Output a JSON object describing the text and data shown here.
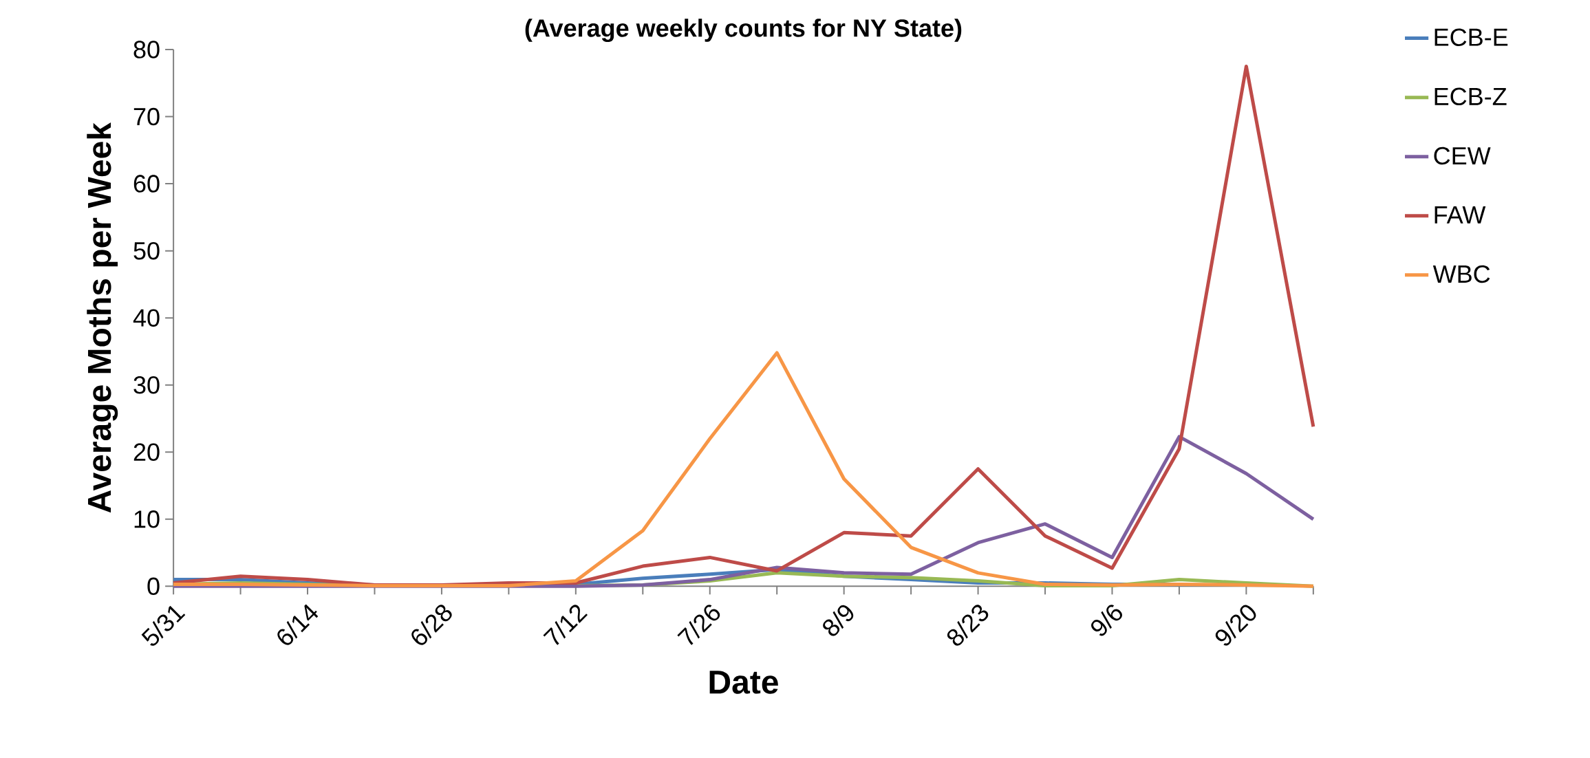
{
  "chart_data": {
    "type": "line",
    "title": "(Average weekly counts for NY State)",
    "xlabel": "Date",
    "ylabel": "Average Moths per Week",
    "categories": [
      "5/31",
      null,
      "6/14",
      null,
      "6/28",
      null,
      "7/12",
      null,
      "7/26",
      null,
      "8/9",
      null,
      "8/23",
      null,
      "9/6",
      null,
      "9/20",
      null
    ],
    "series": [
      {
        "name": "ECB-E",
        "color": "#4a7ebb",
        "values": [
          1.0,
          1.0,
          0.5,
          0.2,
          0.2,
          0.2,
          0.3,
          1.2,
          1.8,
          2.5,
          1.5,
          1.0,
          0.5,
          0.5,
          0.3,
          0.3,
          null,
          null
        ]
      },
      {
        "name": "ECB-Z",
        "color": "#98b954",
        "values": [
          0.3,
          0.5,
          0.3,
          0.1,
          0.1,
          0.1,
          0.1,
          0.2,
          0.8,
          2.0,
          1.5,
          1.3,
          0.8,
          0.1,
          0.1,
          1.0,
          0.5,
          0
        ]
      },
      {
        "name": "CEW",
        "color": "#7d60a0",
        "values": [
          0,
          0,
          0,
          0,
          0,
          0,
          0,
          0.2,
          1.0,
          2.8,
          2.0,
          1.8,
          6.5,
          9.3,
          4.3,
          22.3,
          16.8,
          10.0
        ]
      },
      {
        "name": "FAW",
        "color": "#be4b48",
        "values": [
          0.5,
          1.5,
          1.0,
          0.2,
          0.2,
          0.5,
          0.5,
          3.0,
          4.3,
          2.3,
          8.0,
          7.5,
          17.5,
          7.5,
          2.7,
          20.5,
          77.5,
          23.8
        ]
      },
      {
        "name": "WBC",
        "color": "#f79646",
        "values": [
          0.3,
          0.3,
          0.2,
          0.1,
          0.1,
          0.1,
          0.8,
          8.3,
          22.0,
          34.8,
          16.0,
          5.8,
          2.0,
          0.3,
          0.2,
          0.3,
          0.2,
          0
        ]
      }
    ],
    "ylim": [
      0,
      80
    ],
    "yticks": [
      0,
      10,
      20,
      30,
      40,
      50,
      60,
      70,
      80
    ],
    "grid": false,
    "legend": "right",
    "marker": "none",
    "line_style": "solid"
  }
}
